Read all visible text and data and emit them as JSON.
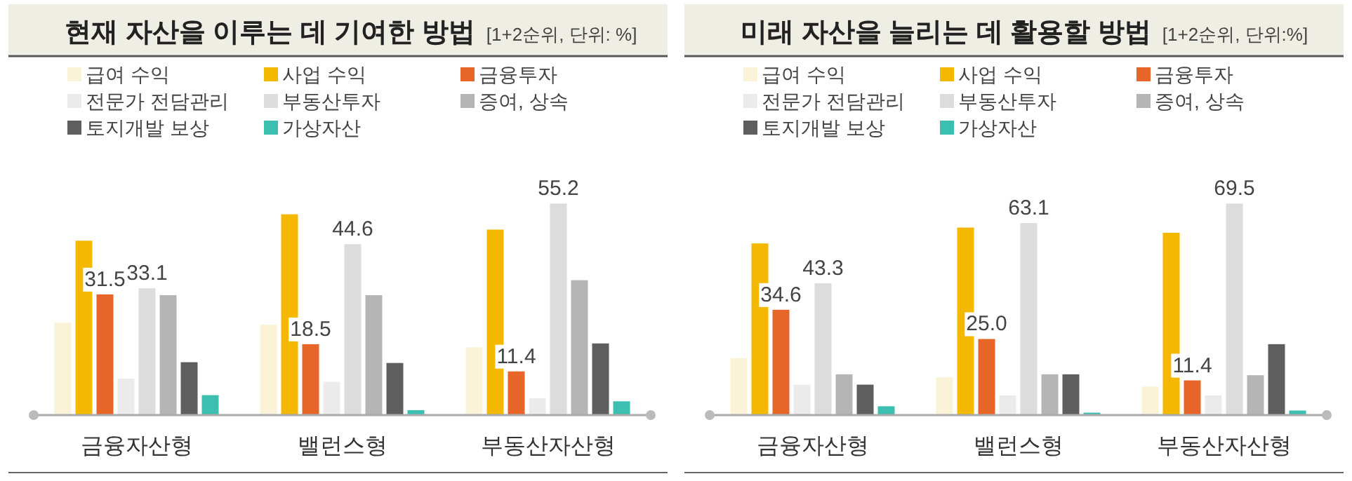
{
  "chart_data": [
    {
      "type": "bar",
      "title": "현재 자산을 이루는 데 기여한 방법",
      "subtitle": "[1+2순위, 단위: %]",
      "categories": [
        "금융자산형",
        "밸런스형",
        "부동산자산형"
      ],
      "tick_labels": "x",
      "legend": "top left",
      "series": [
        {
          "name": "급여 수익",
          "color": "#fbf3d8",
          "values": [
            24.1,
            23.6,
            17.7
          ]
        },
        {
          "name": "사업 수익",
          "color": "#f5b800",
          "values": [
            45.5,
            52.4,
            48.4
          ]
        },
        {
          "name": "금융투자",
          "color": "#e8652a",
          "values": [
            31.5,
            18.5,
            11.4
          ],
          "value_labels": [
            "31.5",
            "18.5",
            "11.4"
          ]
        },
        {
          "name": "전문가 전담관리",
          "color": "#ebebeb",
          "values": [
            9.5,
            8.7,
            4.4
          ]
        },
        {
          "name": "부동산투자",
          "color": "#dcdcdc",
          "values": [
            33.1,
            44.6,
            55.2
          ],
          "value_labels": [
            "33.1",
            "44.6",
            "55.2"
          ]
        },
        {
          "name": "증여, 상속",
          "color": "#b5b5b5",
          "values": [
            31.3,
            31.3,
            35.2
          ]
        },
        {
          "name": "토지개발 보상",
          "color": "#5e5e5e",
          "values": [
            13.8,
            13.6,
            18.7
          ]
        },
        {
          "name": "가상자산",
          "color": "#3cbfb0",
          "values": [
            5.2,
            1.3,
            3.6
          ]
        }
      ]
    },
    {
      "type": "bar",
      "title": "미래 자산을 늘리는 데 활용할 방법",
      "subtitle": "[1+2순위, 단위:%]",
      "categories": [
        "금융자산형",
        "밸런스형",
        "부동산자산형"
      ],
      "tick_labels": "x",
      "legend": "top left",
      "series": [
        {
          "name": "급여 수익",
          "color": "#fbf3d8",
          "values": [
            18.7,
            12.4,
            9.4
          ]
        },
        {
          "name": "사업 수익",
          "color": "#f5b800",
          "values": [
            56.4,
            61.6,
            59.9
          ]
        },
        {
          "name": "금융투자",
          "color": "#e8652a",
          "values": [
            34.6,
            25.0,
            11.4
          ],
          "value_labels": [
            "34.6",
            "25.0",
            "11.4"
          ]
        },
        {
          "name": "전문가 전담관리",
          "color": "#ebebeb",
          "values": [
            10.0,
            6.5,
            6.5
          ]
        },
        {
          "name": "부동산투자",
          "color": "#dcdcdc",
          "values": [
            43.3,
            63.1,
            69.5
          ],
          "value_labels": [
            "43.3",
            "63.1",
            "69.5"
          ]
        },
        {
          "name": "증여, 상속",
          "color": "#b5b5b5",
          "values": [
            13.4,
            13.4,
            13.1
          ]
        },
        {
          "name": "토지개발 보상",
          "color": "#5e5e5e",
          "values": [
            10.0,
            13.4,
            23.3
          ]
        },
        {
          "name": "가상자산",
          "color": "#3cbfb0",
          "values": [
            2.9,
            0.8,
            1.5
          ]
        }
      ]
    }
  ]
}
